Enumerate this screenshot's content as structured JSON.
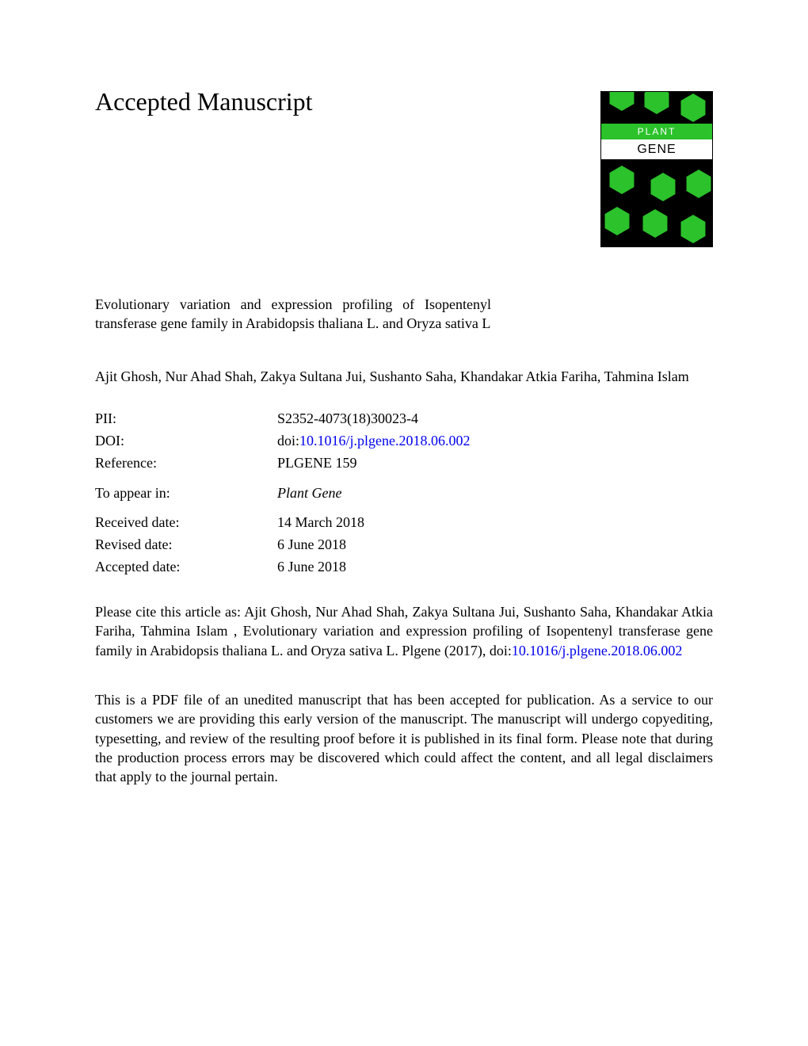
{
  "heading": "Accepted Manuscript",
  "journal_cover": {
    "line1": "PLANT",
    "line2": "GENE",
    "band1_bg": "#2bc22b",
    "band2_bg": "#ffffff",
    "hexagon_color": "#2bc22b",
    "cover_bg": "#000000"
  },
  "title": "Evolutionary variation and expression profiling of Isopentenyl transferase gene family in Arabidopsis thaliana L. and Oryza sativa L",
  "authors": "Ajit Ghosh, Nur Ahad Shah, Zakya Sultana Jui, Sushanto Saha, Khandakar Atkia Fariha, Tahmina Islam",
  "metadata": {
    "pii_label": "PII:",
    "pii_value": "S2352-4073(18)30023-4",
    "doi_label": "DOI:",
    "doi_prefix": "doi:",
    "doi_link": "10.1016/j.plgene.2018.06.002",
    "reference_label": "Reference:",
    "reference_value": "PLGENE 159",
    "appear_label": "To appear in:",
    "appear_value": "Plant Gene",
    "received_label": "Received date:",
    "received_value": "14 March 2018",
    "revised_label": "Revised date:",
    "revised_value": "6 June 2018",
    "accepted_label": "Accepted date:",
    "accepted_value": "6 June 2018"
  },
  "citation": {
    "prefix": "Please cite this article as: Ajit Ghosh, Nur Ahad Shah, Zakya Sultana Jui, Sushanto Saha, Khandakar Atkia Fariha, Tahmina Islam , Evolutionary variation and expression profiling of Isopentenyl transferase gene family in Arabidopsis thaliana L. and Oryza sativa L. Plgene (2017), doi:",
    "link": "10.1016/j.plgene.2018.06.002"
  },
  "disclaimer": "This is a PDF file of an unedited manuscript that has been accepted for publication. As a service to our customers we are providing this early version of the manuscript. The manuscript will undergo copyediting, typesetting, and review of the resulting proof before it is published in its final form. Please note that during the production process errors may be discovered which could affect the content, and all legal disclaimers that apply to the journal pertain.",
  "colors": {
    "link": "#0000ee",
    "text": "#000000",
    "background": "#ffffff"
  },
  "typography": {
    "heading_fontsize": 32,
    "body_fontsize": 18,
    "font_family": "Times New Roman"
  }
}
